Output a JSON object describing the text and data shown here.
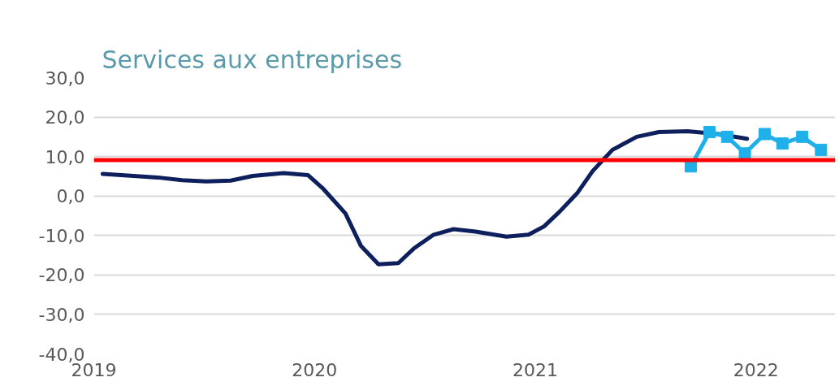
{
  "chart_data": {
    "type": "line",
    "title": "Services aux entreprises",
    "xlim": [
      2019,
      2022.36
    ],
    "xticks": [
      2019,
      2020,
      2021,
      2022
    ],
    "ylim": [
      -40,
      30
    ],
    "yticks": [
      {
        "value": -40,
        "label": "-40,0"
      },
      {
        "value": -30,
        "label": "-30,0"
      },
      {
        "value": -20,
        "label": "-20,0"
      },
      {
        "value": -10,
        "label": "-10,0"
      },
      {
        "value": 0,
        "label": "0,0"
      },
      {
        "value": 10,
        "label": "10,0"
      },
      {
        "value": 20,
        "label": "20,0"
      },
      {
        "value": 30,
        "label": "30,0"
      }
    ],
    "grid": "y",
    "series": [
      {
        "color": "#0d1f5c",
        "marker": "none",
        "x": [
          2019.04,
          2019.18,
          2019.29,
          2019.4,
          2019.51,
          2019.62,
          2019.72,
          2019.86,
          2019.97,
          2020.04,
          2020.14,
          2020.21,
          2020.29,
          2020.38,
          2020.45,
          2020.54,
          2020.63,
          2020.73,
          2020.87,
          2020.97,
          2021.04,
          2021.11,
          2021.19,
          2021.26,
          2021.35,
          2021.46,
          2021.56,
          2021.69,
          2021.83,
          2021.96
        ],
        "values": [
          5.6,
          5.1,
          4.7,
          4.0,
          3.7,
          3.9,
          5.1,
          5.8,
          5.3,
          1.8,
          -4.4,
          -12.6,
          -17.3,
          -17.0,
          -13.3,
          -9.8,
          -8.4,
          -9.0,
          -10.3,
          -9.8,
          -7.7,
          -4.0,
          0.7,
          6.3,
          11.7,
          15.0,
          16.2,
          16.4,
          15.7,
          14.5
        ]
      },
      {
        "color": "#1fb0ea",
        "marker": "square",
        "x": [
          2021.705,
          2021.79,
          2021.87,
          2021.95,
          2022.04,
          2022.12,
          2022.21,
          2022.295
        ],
        "values": [
          7.5,
          16.2,
          15.0,
          10.8,
          15.7,
          13.3,
          15.0,
          11.7
        ]
      }
    ],
    "ref_lines": [
      {
        "axis": "y",
        "value": 9.1,
        "color": "#ff0000"
      }
    ]
  }
}
